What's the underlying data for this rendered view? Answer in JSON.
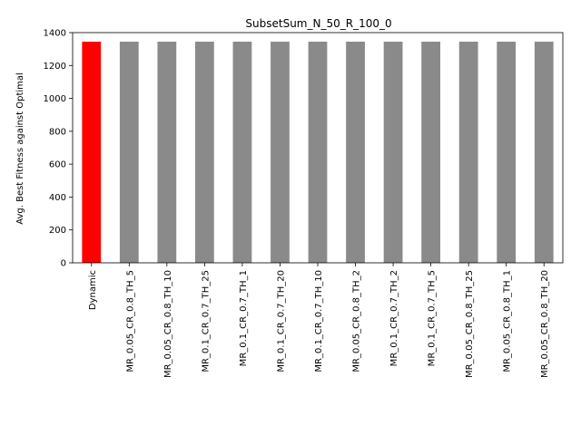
{
  "chart_data": {
    "type": "bar",
    "title": "SubsetSum_N_50_R_100_0",
    "xlabel": "",
    "ylabel": "Avg. Best Fitness against Optimal",
    "ylim": [
      0,
      1400
    ],
    "yticks": [
      0,
      200,
      400,
      600,
      800,
      1000,
      1200,
      1400
    ],
    "categories": [
      "Dynamic",
      "MR_0.05_CR_0.8_TH_5",
      "MR_0.05_CR_0.8_TH_10",
      "MR_0.1_CR_0.7_TH_25",
      "MR_0.1_CR_0.7_TH_1",
      "MR_0.1_CR_0.7_TH_20",
      "MR_0.1_CR_0.7_TH_10",
      "MR_0.05_CR_0.8_TH_2",
      "MR_0.1_CR_0.7_TH_2",
      "MR_0.1_CR_0.7_TH_5",
      "MR_0.05_CR_0.8_TH_25",
      "MR_0.05_CR_0.8_TH_1",
      "MR_0.05_CR_0.8_TH_20"
    ],
    "values": [
      1345,
      1345,
      1345,
      1345,
      1345,
      1345,
      1345,
      1345,
      1345,
      1345,
      1345,
      1345,
      1345
    ],
    "colors": [
      "#ff0000",
      "#8a8a8a",
      "#8a8a8a",
      "#8a8a8a",
      "#8a8a8a",
      "#8a8a8a",
      "#8a8a8a",
      "#8a8a8a",
      "#8a8a8a",
      "#8a8a8a",
      "#8a8a8a",
      "#8a8a8a",
      "#8a8a8a"
    ],
    "grid": false,
    "legend": "none"
  }
}
